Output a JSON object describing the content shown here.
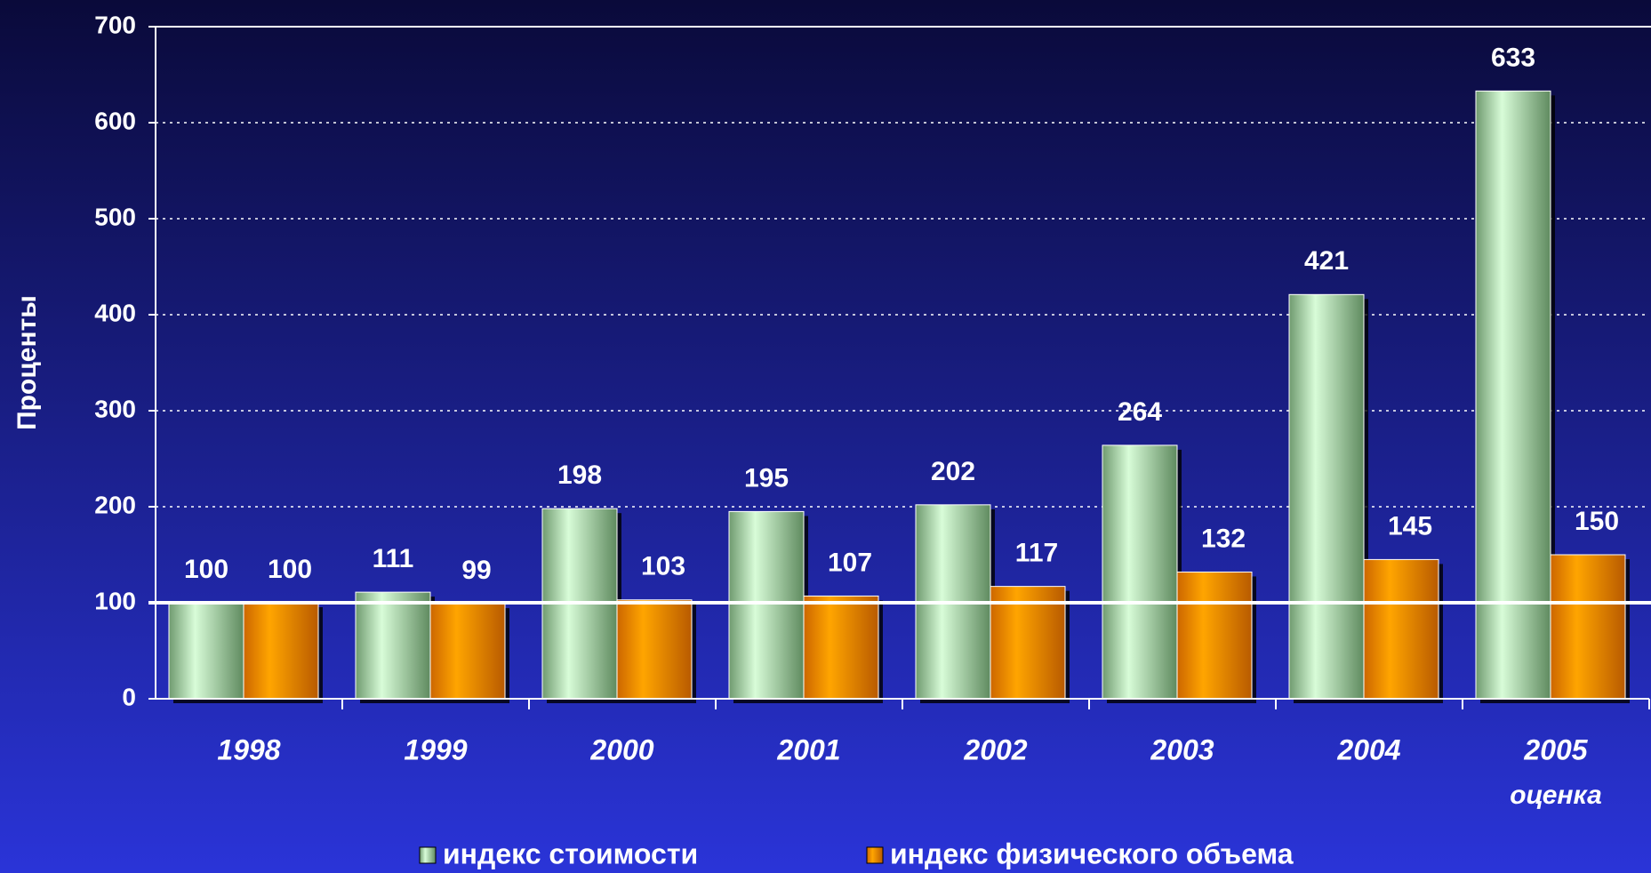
{
  "chart_data": {
    "type": "bar",
    "ylabel": "Проценты",
    "categories": [
      "1998",
      "1999",
      "2000",
      "2001",
      "2002",
      "2003",
      "2004",
      "2005"
    ],
    "annotation": "оценка",
    "series": [
      {
        "name": "индекс стоимости",
        "color": "#b8e8b8",
        "values": [
          100,
          111,
          198,
          195,
          202,
          264,
          421,
          633
        ]
      },
      {
        "name": "индекс физического объема",
        "color": "#ff9900",
        "values": [
          100,
          99,
          103,
          107,
          117,
          132,
          145,
          150
        ]
      }
    ],
    "ylim": [
      0,
      700
    ],
    "yticks": [
      0,
      100,
      200,
      300,
      400,
      500,
      600,
      700
    ],
    "reference_line": 100,
    "grid": true,
    "legend": "bottom"
  }
}
